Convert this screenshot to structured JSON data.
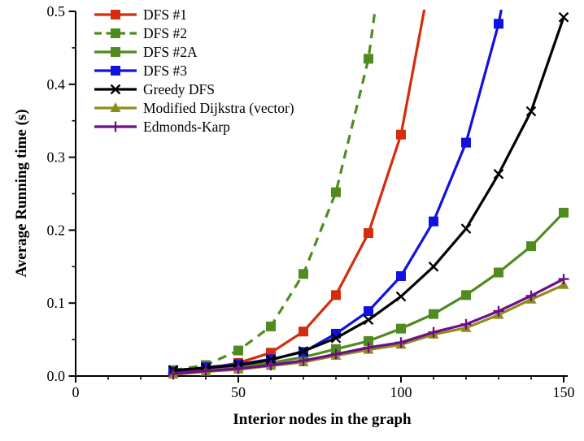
{
  "figure": {
    "background": "#ffffff",
    "axis_color": "#000000",
    "text_color": "#000000"
  },
  "chart_data": {
    "type": "line",
    "title": "",
    "xlabel": "Interior nodes in the graph",
    "ylabel": "Average Running time (s)",
    "xlim": [
      0,
      150
    ],
    "ylim": [
      0,
      0.5
    ],
    "grid": false,
    "legend_position": "top-left",
    "x_major_ticks": [
      0,
      50,
      100,
      150
    ],
    "x_tick_labels": [
      "0",
      "50",
      "100",
      "150"
    ],
    "x_minor_ticks": [
      10,
      20,
      30,
      40,
      60,
      70,
      80,
      90,
      110,
      120,
      130,
      140
    ],
    "y_major_ticks": [
      0,
      0.1,
      0.2,
      0.3,
      0.4,
      0.5
    ],
    "y_tick_labels": [
      "0.0",
      "0.1",
      "0.2",
      "0.3",
      "0.4",
      "0.5"
    ],
    "y_minor_ticks": [
      0.05,
      0.15,
      0.25,
      0.35,
      0.45
    ],
    "series": [
      {
        "name": "DFS #1",
        "color": "#d42c0c",
        "line_style": "solid",
        "marker": "square",
        "x": [
          30,
          40,
          50,
          60,
          70,
          80,
          90,
          100
        ],
        "y": [
          0.006,
          0.01,
          0.018,
          0.032,
          0.061,
          0.111,
          0.196,
          0.331
        ],
        "exit_point": [
          110,
          0.57
        ]
      },
      {
        "name": "DFS #2",
        "color": "#4f8b1e",
        "line_style": "dashed",
        "marker": "square",
        "x": [
          30,
          40,
          50,
          60,
          70,
          80,
          90
        ],
        "y": [
          0.008,
          0.015,
          0.035,
          0.068,
          0.14,
          0.252,
          0.435
        ],
        "exit_point": [
          95,
          0.6
        ]
      },
      {
        "name": "DFS #2A",
        "color": "#4f8b1e",
        "line_style": "solid",
        "marker": "square",
        "x": [
          30,
          40,
          50,
          60,
          70,
          80,
          90,
          100,
          110,
          120,
          130,
          140,
          150
        ],
        "y": [
          0.008,
          0.011,
          0.013,
          0.018,
          0.026,
          0.037,
          0.048,
          0.065,
          0.085,
          0.111,
          0.142,
          0.178,
          0.224
        ],
        "exit_point": null
      },
      {
        "name": "DFS #3",
        "color": "#1111e0",
        "line_style": "solid",
        "marker": "square",
        "x": [
          30,
          40,
          50,
          60,
          70,
          80,
          90,
          100,
          110,
          120,
          130
        ],
        "y": [
          0.006,
          0.012,
          0.016,
          0.023,
          0.033,
          0.058,
          0.089,
          0.137,
          0.212,
          0.32,
          0.483
        ],
        "exit_point": [
          135,
          0.6
        ]
      },
      {
        "name": "Greedy DFS",
        "color": "#000000",
        "line_style": "solid",
        "marker": "x",
        "x": [
          30,
          40,
          50,
          60,
          70,
          80,
          90,
          100,
          110,
          120,
          130,
          140,
          150
        ],
        "y": [
          0.008,
          0.011,
          0.015,
          0.022,
          0.034,
          0.052,
          0.077,
          0.109,
          0.15,
          0.202,
          0.277,
          0.363,
          0.492
        ],
        "exit_point": null
      },
      {
        "name": "Modified Dijkstra (vector)",
        "color": "#8f8c1e",
        "line_style": "solid",
        "marker": "triangle",
        "x": [
          30,
          40,
          50,
          60,
          70,
          80,
          90,
          100,
          110,
          120,
          130,
          140,
          150
        ],
        "y": [
          0.002,
          0.006,
          0.009,
          0.014,
          0.019,
          0.028,
          0.036,
          0.043,
          0.057,
          0.066,
          0.084,
          0.105,
          0.125
        ],
        "exit_point": null
      },
      {
        "name": "Edmonds-Karp",
        "color": "#6e0f87",
        "line_style": "solid",
        "marker": "plus",
        "x": [
          30,
          40,
          50,
          60,
          70,
          80,
          90,
          100,
          110,
          120,
          130,
          140,
          150
        ],
        "y": [
          0.003,
          0.007,
          0.01,
          0.015,
          0.021,
          0.03,
          0.039,
          0.046,
          0.06,
          0.071,
          0.089,
          0.11,
          0.133
        ],
        "exit_point": null
      }
    ]
  }
}
